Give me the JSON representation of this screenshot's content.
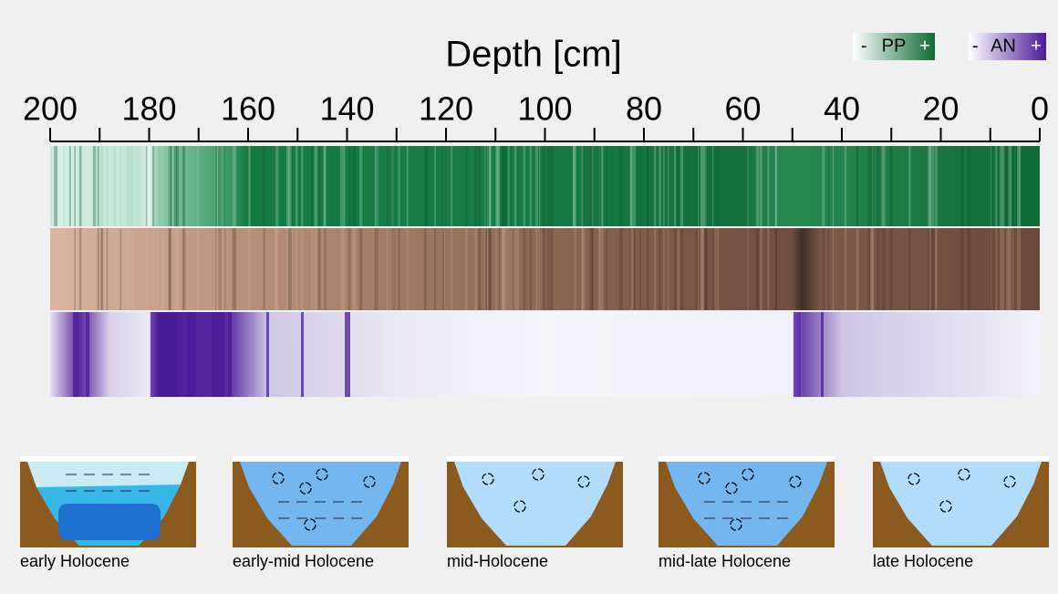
{
  "axis": {
    "label": "Depth [cm]",
    "lim": [
      200,
      0
    ],
    "ticks": [
      200,
      180,
      160,
      140,
      120,
      100,
      80,
      60,
      40,
      20,
      0
    ],
    "minor_ticks": [
      190,
      170,
      150,
      130,
      110,
      90,
      70,
      50,
      30,
      10
    ]
  },
  "legends": [
    {
      "low": "-",
      "name": "PP",
      "high": "+"
    },
    {
      "low": "-",
      "name": "AN",
      "high": "+"
    }
  ],
  "stages": [
    "early Holocene",
    "early-mid Holocene",
    "mid-Holocene",
    "mid-late Holocene",
    "late Holocene"
  ]
}
